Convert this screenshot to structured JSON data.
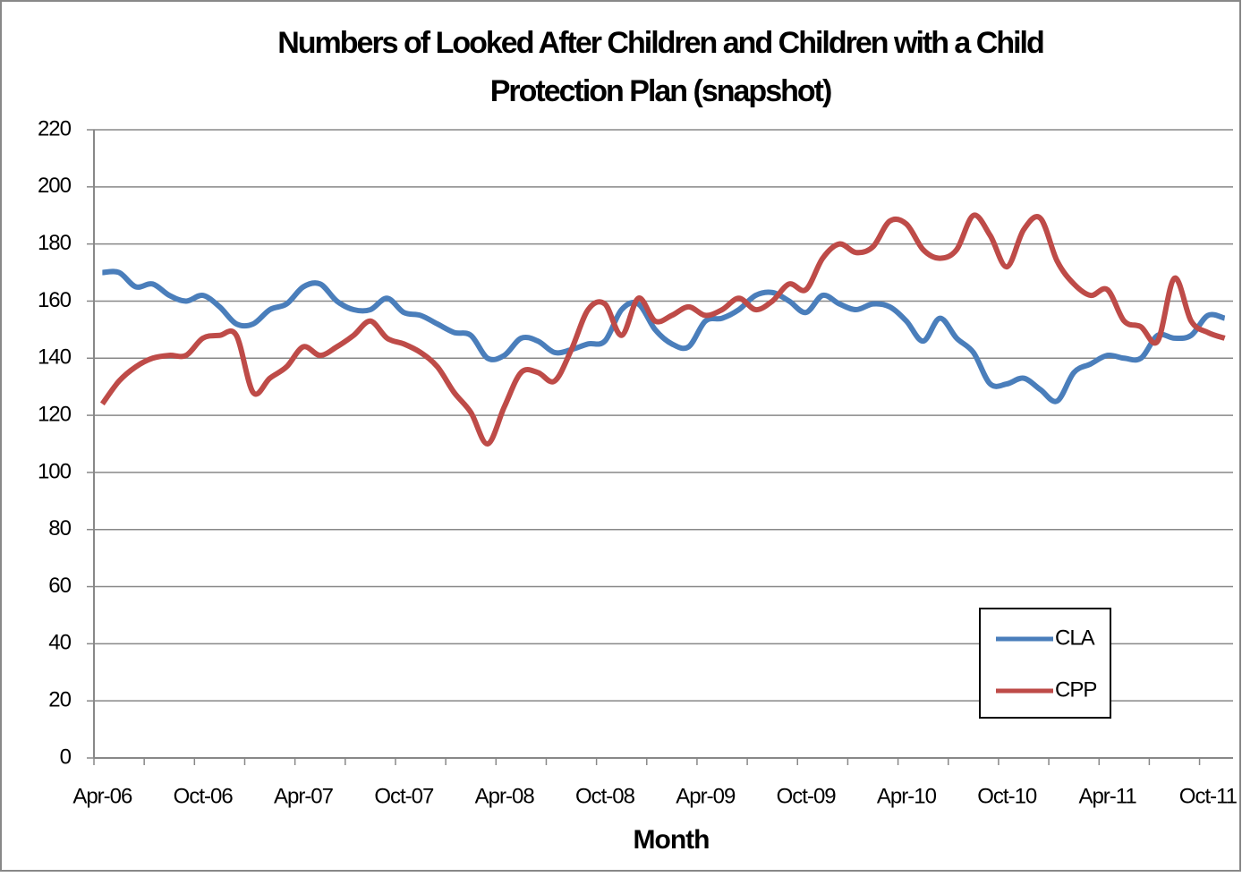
{
  "chart_data": {
    "type": "line",
    "title": [
      "Numbers of Looked After Children and Children with a Child",
      "Protection Plan (snapshot)"
    ],
    "x_label": "Month",
    "categories": [
      "Apr-06",
      null,
      null,
      null,
      null,
      null,
      "Oct-06",
      null,
      null,
      null,
      null,
      null,
      "Apr-07",
      null,
      null,
      null,
      null,
      null,
      "Oct-07",
      null,
      null,
      null,
      null,
      null,
      "Apr-08",
      null,
      null,
      null,
      null,
      null,
      "Oct-08",
      null,
      null,
      null,
      null,
      null,
      "Apr-09",
      null,
      null,
      null,
      null,
      null,
      "Oct-09",
      null,
      null,
      null,
      null,
      null,
      "Apr-10",
      null,
      null,
      null,
      null,
      null,
      "Oct-10",
      null,
      null,
      null,
      null,
      null,
      "Apr-11",
      null,
      null,
      null,
      null,
      null,
      "Oct-11",
      null
    ],
    "series": [
      {
        "name": "CLA",
        "color": "#4a7ebb",
        "values": [
          170,
          170,
          165,
          166,
          162,
          160,
          162,
          158,
          152,
          152,
          157,
          159,
          165,
          166,
          160,
          157,
          157,
          161,
          156,
          155,
          152,
          149,
          148,
          140,
          141,
          147,
          146,
          142,
          143,
          145,
          146,
          157,
          159,
          150,
          145,
          144,
          153,
          154,
          157,
          162,
          163,
          160,
          156,
          162,
          159,
          157,
          159,
          158,
          153,
          146,
          154,
          147,
          142,
          131,
          131,
          133,
          129,
          125,
          135,
          138,
          141,
          140,
          140,
          148,
          147,
          148,
          155,
          154
        ]
      },
      {
        "name": "CPP",
        "color": "#be4b48",
        "values": [
          124,
          132,
          137,
          140,
          141,
          141,
          147,
          148,
          148,
          128,
          133,
          137,
          144,
          141,
          144,
          148,
          153,
          147,
          145,
          142,
          137,
          128,
          121,
          110,
          123,
          135,
          135,
          132,
          143,
          157,
          159,
          148,
          161,
          153,
          155,
          158,
          155,
          157,
          161,
          157,
          160,
          166,
          164,
          175,
          180,
          177,
          179,
          188,
          187,
          178,
          175,
          178,
          190,
          183,
          172,
          185,
          189,
          174,
          166,
          162,
          164,
          153,
          151,
          146,
          168,
          153,
          149,
          147
        ]
      }
    ],
    "ylim": [
      0,
      220
    ],
    "yticks": [
      0,
      20,
      40,
      60,
      80,
      100,
      120,
      140,
      160,
      180,
      200,
      220
    ],
    "grid": true,
    "legend": "lower right"
  }
}
